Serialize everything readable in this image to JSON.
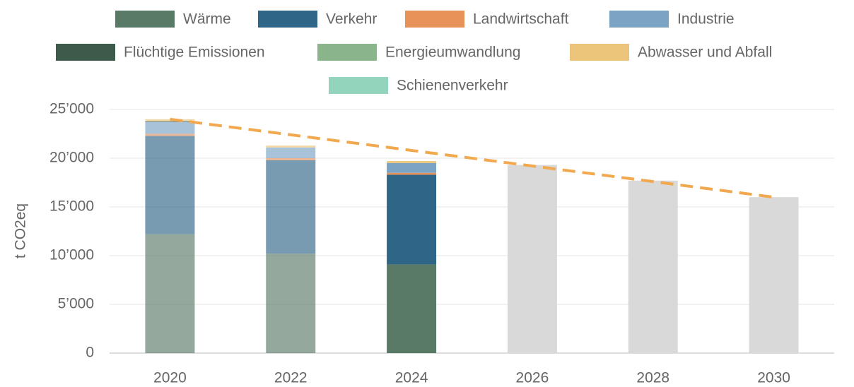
{
  "chart_data": {
    "type": "stacked_bar",
    "categories": [
      "2020",
      "2022",
      "2024",
      "2026",
      "2028",
      "2030"
    ],
    "series": [
      {
        "name": "Wärme",
        "color": "#5a7a68",
        "values": [
          12200,
          10200,
          9100,
          null,
          null,
          null
        ]
      },
      {
        "name": "Verkehr",
        "color": "#2f6687",
        "values": [
          10100,
          9600,
          9200,
          null,
          null,
          null
        ]
      },
      {
        "name": "Landwirtschaft",
        "color": "#e8925a",
        "values": [
          200,
          200,
          200,
          null,
          null,
          null
        ]
      },
      {
        "name": "Industrie",
        "color": "#7aa3c4",
        "values": [
          1200,
          1100,
          1000,
          null,
          null,
          null
        ]
      },
      {
        "name": "Flüchtige Emissionen",
        "color": "#3d5a4b",
        "values": [
          100,
          0,
          0,
          null,
          null,
          null
        ]
      },
      {
        "name": "Energieumwandlung",
        "color": "#8ab58a",
        "values": [
          0,
          0,
          0,
          null,
          null,
          null
        ]
      },
      {
        "name": "Abwasser und Abfall",
        "color": "#ecc57a",
        "values": [
          200,
          200,
          200,
          null,
          null,
          null
        ]
      },
      {
        "name": "Schienenverkehr",
        "color": "#93d4bc",
        "values": [
          0,
          0,
          0,
          null,
          null,
          null
        ]
      }
    ],
    "projection": {
      "color": "#d9d9d9",
      "values": [
        null,
        null,
        null,
        19300,
        17700,
        16000
      ]
    },
    "trend": {
      "color": "#f2a84e",
      "values": [
        24000,
        22400,
        20800,
        19200,
        17600,
        16000
      ]
    },
    "ylabel": "t CO2eq",
    "ylim": [
      0,
      25000
    ],
    "yticks": [
      0,
      {
        "value": 5000,
        "label": "5’000"
      },
      {
        "value": 10000,
        "label": "10’000"
      },
      {
        "value": 15000,
        "label": "15’000"
      },
      {
        "value": 20000,
        "label": "20’000"
      },
      {
        "value": 25000,
        "label": "25’000"
      }
    ],
    "grid": true
  }
}
